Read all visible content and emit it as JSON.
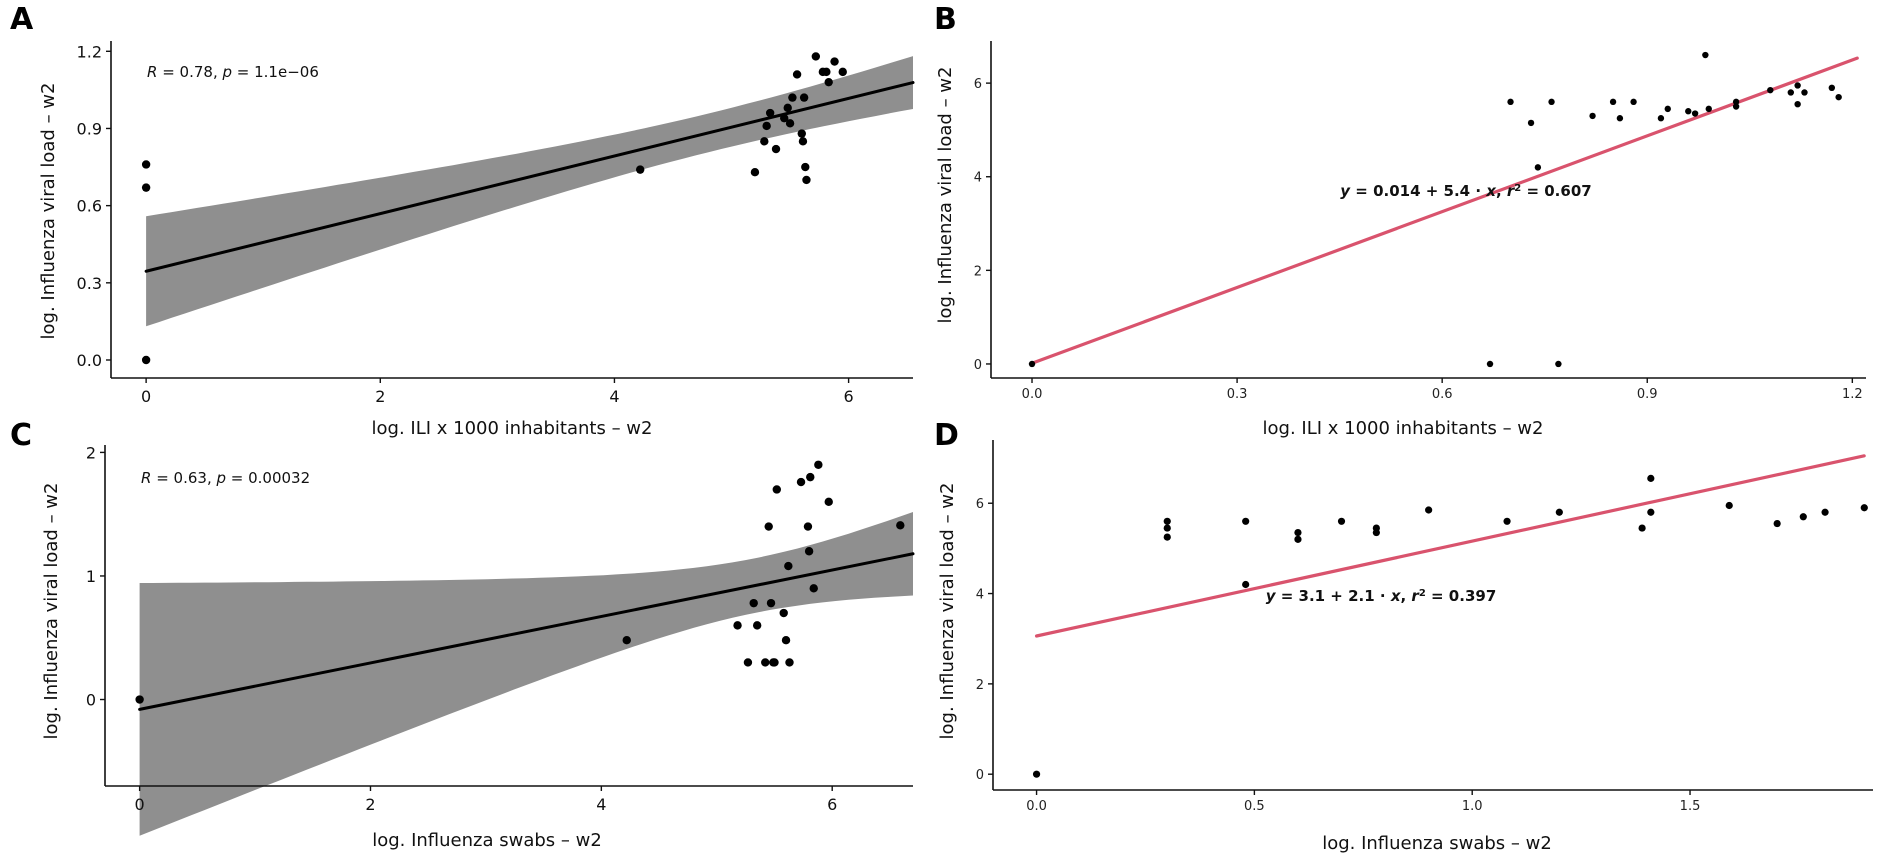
{
  "chart_data": [
    {
      "id": "A",
      "panel_label": "A",
      "type": "scatter",
      "xlabel": "log. ILI x 1000 inhabitants – w2",
      "ylabel": "log. Influenza viral load – w2",
      "xlim": [
        -0.3,
        6.55
      ],
      "ylim": [
        -0.07,
        1.24
      ],
      "xticks": [
        0,
        2,
        4,
        6
      ],
      "xtick_labels": [
        "0",
        "2",
        "4",
        "6"
      ],
      "yticks": [
        0,
        0.3,
        0.6,
        0.9,
        1.2
      ],
      "ytick_labels": [
        "0.0",
        "0.3",
        "0.6",
        "0.9",
        "1.2"
      ],
      "annotation": {
        "r": "R",
        "r_val": " = 0.78, ",
        "p": "p",
        "p_val": " = 1.1e−06"
      },
      "fit": {
        "intercept": 0.345,
        "slope": 0.112,
        "color": "#000000",
        "ci": true
      },
      "points": [
        [
          0.0,
          0.0
        ],
        [
          0.0,
          0.67
        ],
        [
          0.0,
          0.76
        ],
        [
          4.22,
          0.74
        ],
        [
          5.2,
          0.73
        ],
        [
          5.28,
          0.85
        ],
        [
          5.3,
          0.91
        ],
        [
          5.33,
          0.96
        ],
        [
          5.38,
          0.82
        ],
        [
          5.45,
          0.94
        ],
        [
          5.48,
          0.98
        ],
        [
          5.5,
          0.92
        ],
        [
          5.52,
          1.02
        ],
        [
          5.56,
          1.11
        ],
        [
          5.6,
          0.88
        ],
        [
          5.61,
          0.85
        ],
        [
          5.62,
          1.02
        ],
        [
          5.63,
          0.75
        ],
        [
          5.64,
          0.7
        ],
        [
          5.72,
          1.18
        ],
        [
          5.78,
          1.12
        ],
        [
          5.81,
          1.12
        ],
        [
          5.83,
          1.08
        ],
        [
          5.88,
          1.16
        ],
        [
          5.95,
          1.12
        ]
      ]
    },
    {
      "id": "B",
      "panel_label": "B",
      "type": "scatter",
      "xlabel": "log. ILI x 1000 inhabitants – w2",
      "ylabel": "log. Influenza viral load – w2",
      "xlim": [
        -0.06,
        1.22
      ],
      "ylim": [
        -0.3,
        6.9
      ],
      "xticks": [
        0,
        0.3,
        0.6,
        0.9,
        1.2
      ],
      "xtick_labels": [
        "0.0",
        "0.3",
        "0.6",
        "0.9",
        "1.2"
      ],
      "yticks": [
        0,
        2,
        4,
        6
      ],
      "ytick_labels": [
        "0",
        "2",
        "4",
        "6"
      ],
      "equation": {
        "y": "y",
        "part1": " = 0.014 + 5.4 · ",
        "x": "x",
        "part2": ",  ",
        "r": "r",
        "sup": "2",
        "part3": " = 0.607"
      },
      "fit": {
        "intercept": 0.014,
        "slope": 5.4,
        "color": "#d9536d",
        "ci": false
      },
      "points": [
        [
          0.0,
          0.0
        ],
        [
          0.67,
          0.0
        ],
        [
          0.7,
          5.6
        ],
        [
          0.73,
          5.15
        ],
        [
          0.74,
          4.2
        ],
        [
          0.76,
          5.6
        ],
        [
          0.77,
          0.0
        ],
        [
          0.82,
          5.3
        ],
        [
          0.85,
          5.6
        ],
        [
          0.86,
          5.25
        ],
        [
          0.88,
          5.6
        ],
        [
          0.92,
          5.25
        ],
        [
          0.93,
          5.45
        ],
        [
          0.96,
          5.4
        ],
        [
          0.97,
          5.35
        ],
        [
          0.985,
          6.6
        ],
        [
          0.99,
          5.45
        ],
        [
          1.03,
          5.5
        ],
        [
          1.03,
          5.6
        ],
        [
          1.08,
          5.85
        ],
        [
          1.11,
          5.8
        ],
        [
          1.12,
          5.95
        ],
        [
          1.12,
          5.55
        ],
        [
          1.13,
          5.8
        ],
        [
          1.17,
          5.9
        ],
        [
          1.18,
          5.7
        ]
      ]
    },
    {
      "id": "C",
      "panel_label": "C",
      "type": "scatter",
      "xlabel": "log. Influenza swabs – w2",
      "ylabel": "log. Influenza viral load – w2",
      "xlim": [
        -0.3,
        6.7
      ],
      "ylim": [
        -0.7,
        2.06
      ],
      "xticks": [
        0,
        2,
        4,
        6
      ],
      "xtick_labels": [
        "0",
        "2",
        "4",
        "6"
      ],
      "yticks": [
        0,
        1,
        2
      ],
      "ytick_labels": [
        "0",
        "1",
        "2"
      ],
      "annotation": {
        "r": "R",
        "r_val": " = 0.63, ",
        "p": "p",
        "p_val": " = 0.00032"
      },
      "fit": {
        "intercept": -0.08,
        "slope": 0.188,
        "color": "#000000",
        "ci": true
      },
      "points": [
        [
          0.0,
          0.0
        ],
        [
          4.22,
          0.48
        ],
        [
          5.18,
          0.6
        ],
        [
          5.27,
          0.3
        ],
        [
          5.32,
          0.78
        ],
        [
          5.35,
          0.6
        ],
        [
          5.42,
          0.3
        ],
        [
          5.45,
          1.4
        ],
        [
          5.47,
          0.78
        ],
        [
          5.49,
          0.3
        ],
        [
          5.5,
          0.3
        ],
        [
          5.52,
          1.7
        ],
        [
          5.58,
          0.7
        ],
        [
          5.6,
          0.48
        ],
        [
          5.62,
          1.08
        ],
        [
          5.63,
          0.3
        ],
        [
          5.73,
          1.76
        ],
        [
          5.79,
          1.4
        ],
        [
          5.8,
          1.2
        ],
        [
          5.81,
          1.8
        ],
        [
          5.84,
          0.9
        ],
        [
          5.88,
          1.9
        ],
        [
          5.97,
          1.6
        ],
        [
          6.59,
          1.41
        ]
      ]
    },
    {
      "id": "D",
      "panel_label": "D",
      "type": "scatter",
      "xlabel": "log. Influenza swabs – w2",
      "ylabel": "log. Influenza viral load – w2",
      "xlim": [
        -0.1,
        1.92
      ],
      "ylim": [
        -0.35,
        7.4
      ],
      "xticks": [
        0,
        0.5,
        1.0,
        1.5
      ],
      "xtick_labels": [
        "0.0",
        "0.5",
        "1.0",
        "1.5"
      ],
      "yticks": [
        0,
        2,
        4,
        6
      ],
      "ytick_labels": [
        "0",
        "2",
        "4",
        "6"
      ],
      "equation": {
        "y": "y",
        "part1": " = 3.1 + 2.1 · ",
        "x": "x",
        "part2": ",  ",
        "r": "r",
        "sup": "2",
        "part3": " = 0.397"
      },
      "fit": {
        "intercept": 3.06,
        "slope": 2.1,
        "color": "#d9536d",
        "ci": false
      },
      "points": [
        [
          0.0,
          0.0
        ],
        [
          0.3,
          5.25
        ],
        [
          0.3,
          5.45
        ],
        [
          0.3,
          5.6
        ],
        [
          0.48,
          4.2
        ],
        [
          0.48,
          5.6
        ],
        [
          0.6,
          5.2
        ],
        [
          0.6,
          5.35
        ],
        [
          0.7,
          5.6
        ],
        [
          0.78,
          5.35
        ],
        [
          0.78,
          5.45
        ],
        [
          0.9,
          5.85
        ],
        [
          1.08,
          5.6
        ],
        [
          1.2,
          5.8
        ],
        [
          1.39,
          5.45
        ],
        [
          1.41,
          5.8
        ],
        [
          1.41,
          6.55
        ],
        [
          1.59,
          5.95
        ],
        [
          1.7,
          5.55
        ],
        [
          1.76,
          5.7
        ],
        [
          1.81,
          5.8
        ],
        [
          1.9,
          5.9
        ]
      ]
    }
  ]
}
